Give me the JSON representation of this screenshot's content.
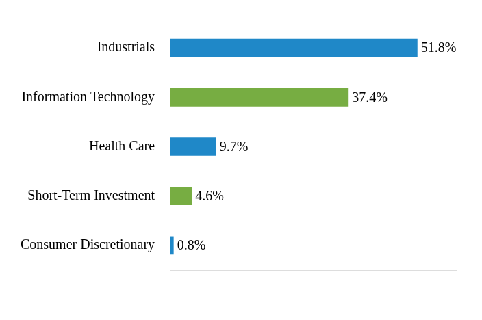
{
  "chart_data": {
    "type": "bar",
    "orientation": "horizontal",
    "categories": [
      "Industrials",
      "Information Technology",
      "Health Care",
      "Short-Term Investment",
      "Consumer Discretionary"
    ],
    "values": [
      51.8,
      37.4,
      9.7,
      4.6,
      0.8
    ],
    "value_labels": [
      "51.8%",
      "37.4%",
      "9.7%",
      "4.6%",
      "0.8%"
    ],
    "colors": [
      "#1f88c8",
      "#77ad42",
      "#1f88c8",
      "#77ad42",
      "#1f88c8"
    ],
    "xlim": [
      0,
      60
    ],
    "grid": false,
    "data_labels": true,
    "tick_labels": "y"
  }
}
